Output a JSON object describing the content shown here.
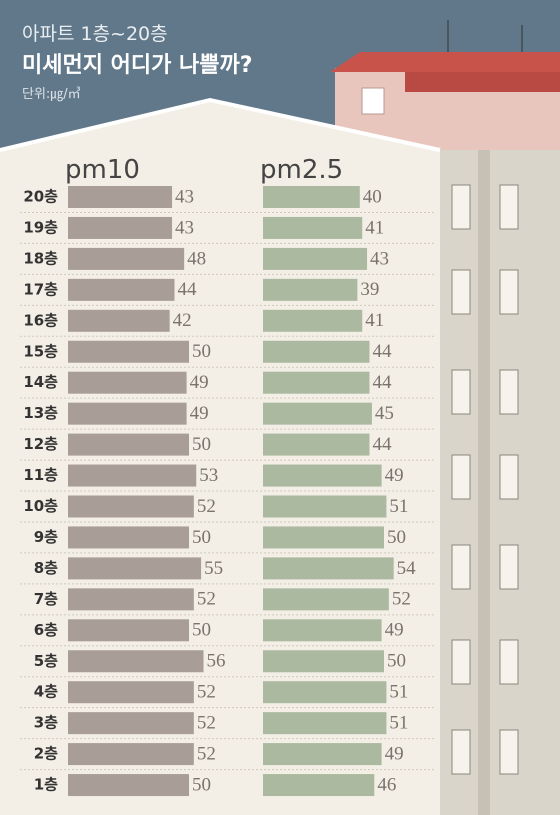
{
  "chart_data": {
    "type": "bar",
    "title": "아파트 1층~20층",
    "subtitle": "미세먼지 어디가 나쁠까?",
    "unit": "단위:㎍/㎥",
    "categories": [
      "20층",
      "19층",
      "18층",
      "17층",
      "16층",
      "15층",
      "14층",
      "13층",
      "12층",
      "11층",
      "10층",
      "9층",
      "8층",
      "7층",
      "6층",
      "5층",
      "4층",
      "3층",
      "2층",
      "1층"
    ],
    "series": [
      {
        "name": "pm10",
        "color": "#a99d97",
        "values": [
          43,
          43,
          48,
          44,
          42,
          50,
          49,
          49,
          50,
          53,
          52,
          50,
          55,
          52,
          50,
          56,
          52,
          52,
          52,
          50
        ]
      },
      {
        "name": "pm2.5",
        "color": "#aab99f",
        "values": [
          40,
          41,
          43,
          39,
          41,
          44,
          44,
          45,
          44,
          49,
          51,
          50,
          54,
          52,
          49,
          50,
          51,
          51,
          49,
          46
        ]
      }
    ]
  }
}
